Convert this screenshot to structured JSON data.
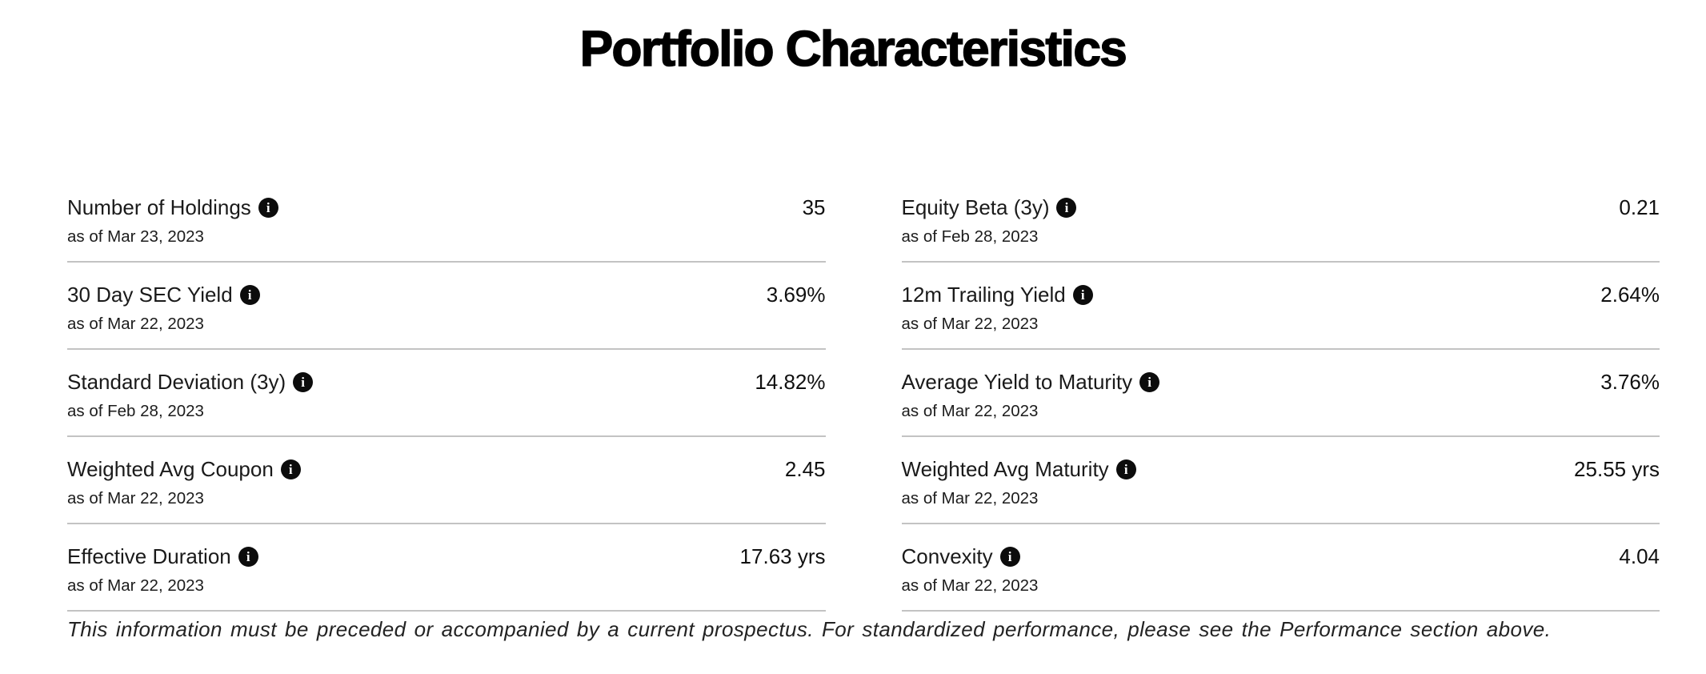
{
  "page": {
    "title": "Portfolio Characteristics",
    "footer": "This information must be preceded or accompanied by a current prospectus. For standardized performance, please see the Performance section above."
  },
  "icons": {
    "info_glyph": "i"
  },
  "colors": {
    "text": "#1a1a1a",
    "divider": "#c3c3c3",
    "icon_background": "#0c0c0c",
    "icon_glyph": "#ffffff"
  },
  "metrics": [
    {
      "label": "Number of Holdings",
      "value": "35",
      "as_of": "as of Mar 23, 2023"
    },
    {
      "label": "Equity Beta (3y)",
      "value": "0.21",
      "as_of": "as of Feb 28, 2023"
    },
    {
      "label": "30 Day SEC Yield",
      "value": "3.69%",
      "as_of": "as of Mar 22, 2023"
    },
    {
      "label": "12m Trailing Yield",
      "value": "2.64%",
      "as_of": "as of Mar 22, 2023"
    },
    {
      "label": "Standard Deviation (3y)",
      "value": "14.82%",
      "as_of": "as of Feb 28, 2023"
    },
    {
      "label": "Average Yield to Maturity",
      "value": "3.76%",
      "as_of": "as of Mar 22, 2023"
    },
    {
      "label": "Weighted Avg Coupon",
      "value": "2.45",
      "as_of": "as of Mar 22, 2023"
    },
    {
      "label": "Weighted Avg Maturity",
      "value": "25.55 yrs",
      "as_of": "as of Mar 22, 2023"
    },
    {
      "label": "Effective Duration",
      "value": "17.63 yrs",
      "as_of": "as of Mar 22, 2023"
    },
    {
      "label": "Convexity",
      "value": "4.04",
      "as_of": "as of Mar 22, 2023"
    }
  ]
}
